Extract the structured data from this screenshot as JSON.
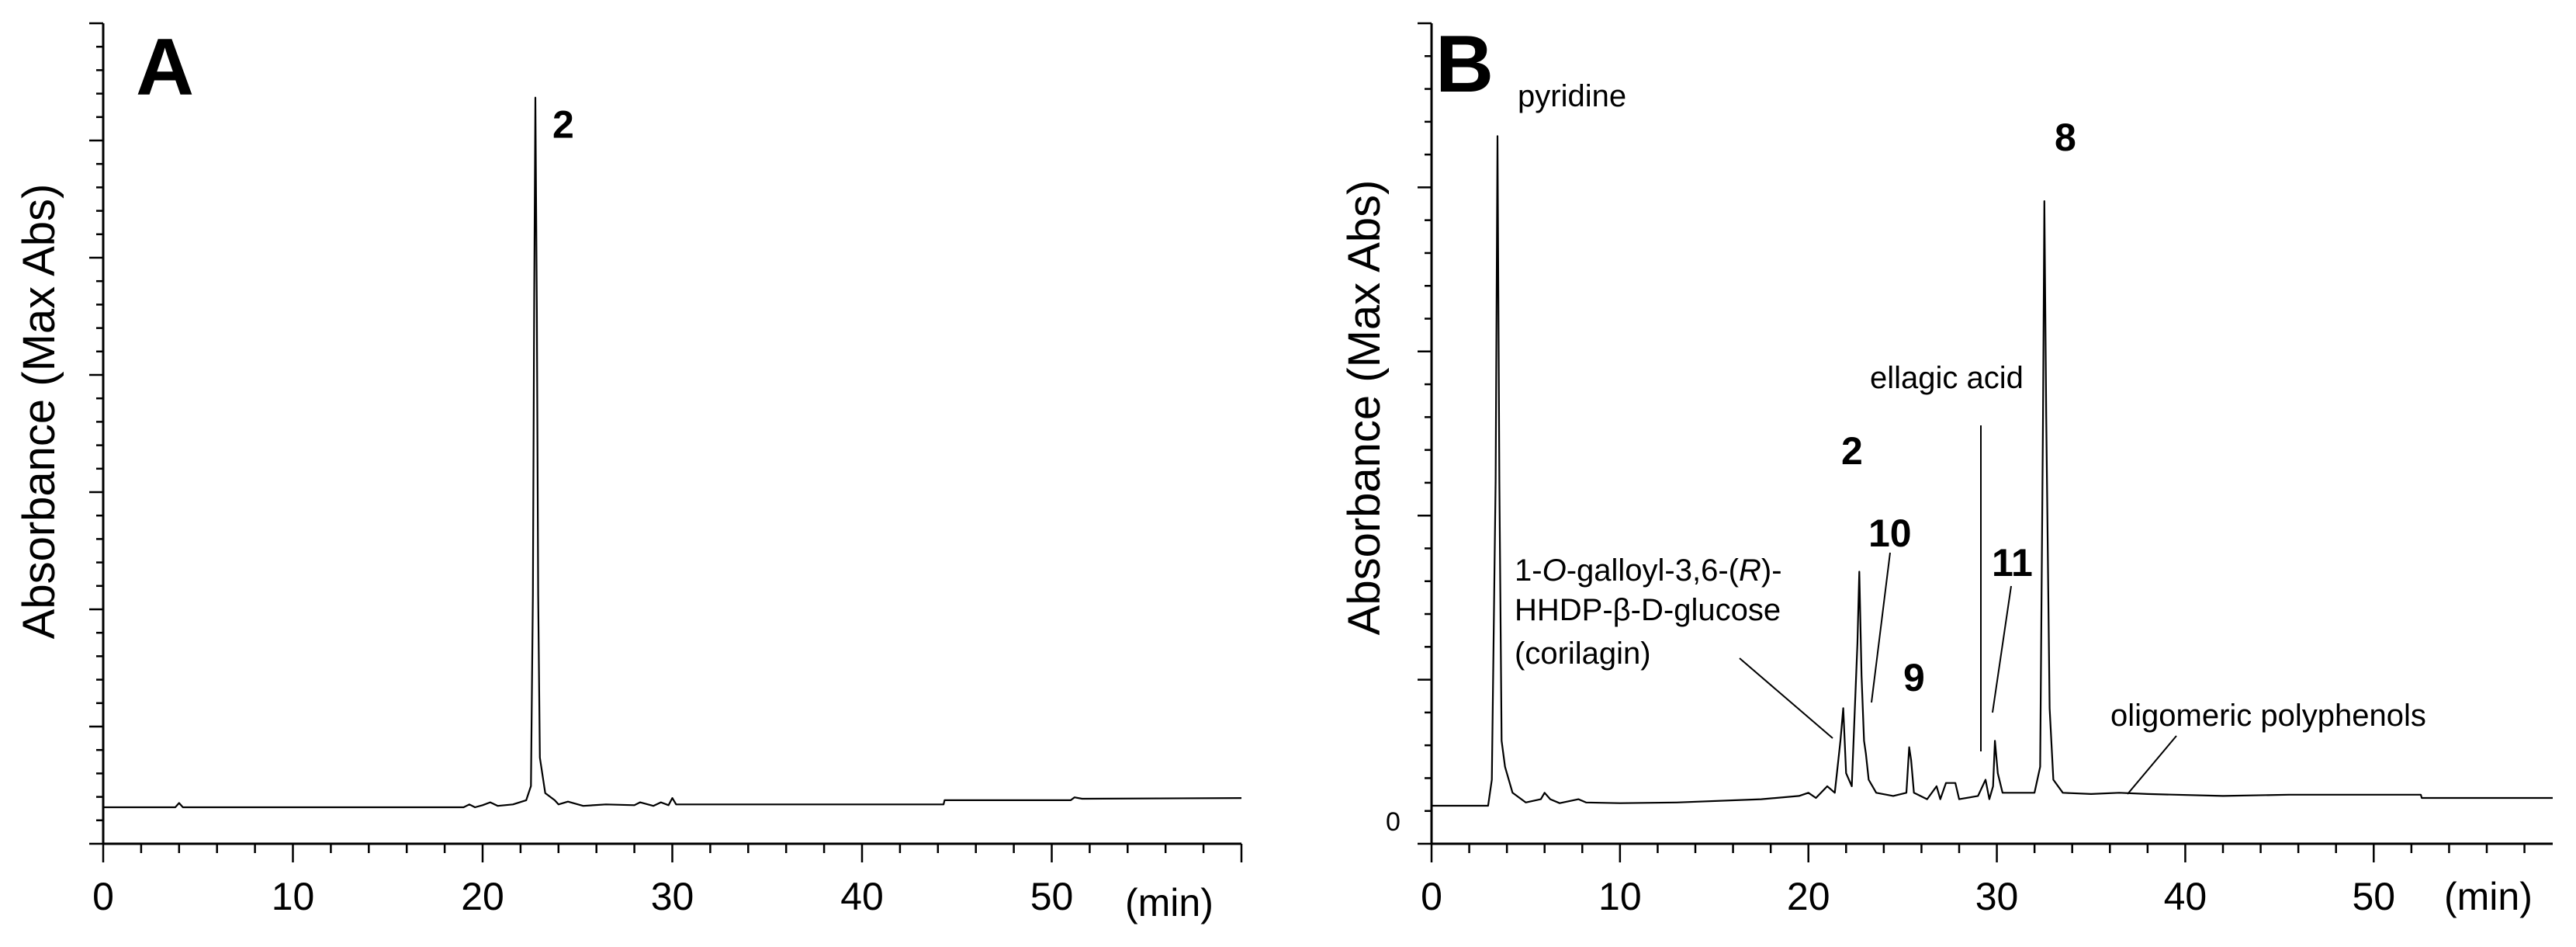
{
  "chart_data": [
    {
      "type": "line",
      "panel": "A",
      "ylabel": "Absorbance (Max Abs)",
      "xlabel_unit": "(min)",
      "xlim": [
        0,
        60
      ],
      "xticks": [
        "0",
        "10",
        "20",
        "30",
        "40",
        "50"
      ],
      "ylim": [
        0,
        1.05
      ],
      "y_tick_labels_shown": false,
      "grid": false,
      "series": [
        {
          "points": [
            [
              0,
              0.0
            ],
            [
              3.8,
              0.0
            ],
            [
              4.0,
              0.006
            ],
            [
              4.2,
              0.0
            ],
            [
              19.0,
              0.0
            ],
            [
              19.3,
              0.004
            ],
            [
              19.6,
              0.0
            ],
            [
              20.0,
              0.003
            ],
            [
              20.4,
              0.007
            ],
            [
              20.8,
              0.002
            ],
            [
              21.6,
              0.004
            ],
            [
              22.3,
              0.01
            ],
            [
              22.55,
              0.03
            ],
            [
              22.65,
              0.3
            ],
            [
              22.72,
              0.72
            ],
            [
              22.78,
              1.0
            ],
            [
              22.86,
              0.7
            ],
            [
              22.93,
              0.3
            ],
            [
              23.02,
              0.07
            ],
            [
              23.3,
              0.02
            ],
            [
              23.8,
              0.01
            ],
            [
              24.0,
              0.004
            ],
            [
              24.5,
              0.008
            ],
            [
              25.3,
              0.002
            ],
            [
              26.5,
              0.004
            ],
            [
              28.0,
              0.003
            ],
            [
              28.3,
              0.007
            ],
            [
              29.0,
              0.002
            ],
            [
              29.4,
              0.007
            ],
            [
              29.8,
              0.003
            ],
            [
              30.0,
              0.013
            ],
            [
              30.2,
              0.004
            ],
            [
              44.3,
              0.004
            ],
            [
              44.35,
              0.01
            ],
            [
              51.0,
              0.01
            ],
            [
              51.2,
              0.014
            ],
            [
              51.6,
              0.012
            ],
            [
              60.0,
              0.013
            ]
          ]
        }
      ],
      "peak_labels": [
        {
          "text": "2",
          "x": 22.78,
          "y": 1.0
        }
      ]
    },
    {
      "type": "line",
      "panel": "B",
      "ylabel": "Absorbance (Max Abs)",
      "xlabel_unit": "(min)",
      "xlim": [
        0,
        59.5
      ],
      "xticks": [
        "0",
        "10",
        "20",
        "30",
        "40",
        "50"
      ],
      "ylim": [
        0,
        1.12
      ],
      "y_origin_label": "0",
      "y_tick_labels_shown": false,
      "grid": false,
      "series": [
        {
          "points": [
            [
              0,
              0.0
            ],
            [
              3.0,
              0.0
            ],
            [
              3.2,
              0.04
            ],
            [
              3.4,
              0.5
            ],
            [
              3.5,
              1.03
            ],
            [
              3.6,
              0.5
            ],
            [
              3.72,
              0.1
            ],
            [
              3.9,
              0.06
            ],
            [
              4.3,
              0.02
            ],
            [
              5.0,
              0.005
            ],
            [
              5.8,
              0.01
            ],
            [
              6.0,
              0.02
            ],
            [
              6.3,
              0.01
            ],
            [
              6.8,
              0.004
            ],
            [
              7.8,
              0.01
            ],
            [
              8.2,
              0.005
            ],
            [
              10.0,
              0.004
            ],
            [
              13.0,
              0.005
            ],
            [
              17.5,
              0.01
            ],
            [
              19.5,
              0.015
            ],
            [
              20.0,
              0.02
            ],
            [
              20.4,
              0.012
            ],
            [
              21.0,
              0.03
            ],
            [
              21.4,
              0.02
            ],
            [
              21.7,
              0.1
            ],
            [
              21.85,
              0.15
            ],
            [
              22.0,
              0.05
            ],
            [
              22.3,
              0.03
            ],
            [
              22.6,
              0.25
            ],
            [
              22.7,
              0.36
            ],
            [
              22.82,
              0.2
            ],
            [
              22.95,
              0.1
            ],
            [
              23.05,
              0.08
            ],
            [
              23.2,
              0.04
            ],
            [
              23.6,
              0.02
            ],
            [
              24.5,
              0.015
            ],
            [
              25.2,
              0.02
            ],
            [
              25.35,
              0.09
            ],
            [
              25.45,
              0.07
            ],
            [
              25.6,
              0.02
            ],
            [
              26.3,
              0.01
            ],
            [
              26.8,
              0.03
            ],
            [
              27.0,
              0.01
            ],
            [
              27.3,
              0.035
            ],
            [
              27.8,
              0.035
            ],
            [
              28.0,
              0.01
            ],
            [
              29.0,
              0.015
            ],
            [
              29.4,
              0.04
            ],
            [
              29.6,
              0.01
            ],
            [
              29.8,
              0.03
            ],
            [
              29.9,
              0.1
            ],
            [
              30.05,
              0.05
            ],
            [
              30.3,
              0.02
            ],
            [
              32.0,
              0.02
            ],
            [
              32.3,
              0.06
            ],
            [
              32.45,
              0.6
            ],
            [
              32.52,
              0.93
            ],
            [
              32.62,
              0.6
            ],
            [
              32.8,
              0.15
            ],
            [
              33.0,
              0.04
            ],
            [
              33.5,
              0.02
            ],
            [
              35.0,
              0.018
            ],
            [
              36.5,
              0.02
            ],
            [
              38.0,
              0.018
            ],
            [
              42.0,
              0.015
            ],
            [
              45.5,
              0.017
            ],
            [
              52.5,
              0.017
            ],
            [
              52.55,
              0.012
            ],
            [
              59.5,
              0.012
            ]
          ]
        }
      ],
      "peak_labels": [
        {
          "text": "pyridine",
          "x": 3.5,
          "y": 1.03
        },
        {
          "text": "8",
          "x": 32.52,
          "y": 0.93
        },
        {
          "text": "2",
          "x": 22.7,
          "y": 0.36
        },
        {
          "text": "10",
          "x": 23.0,
          "y": 0.1
        },
        {
          "text": "9",
          "x": 25.35,
          "y": 0.09
        },
        {
          "text": "11",
          "x": 29.9,
          "y": 0.1
        }
      ],
      "annotations": [
        {
          "text": "ellagic acid",
          "x": 29.3
        },
        {
          "lines": [
            "1-O-galloyl-3,6-(R)-",
            "HHDP-β-D-glucose",
            "(corilagin)"
          ],
          "x": 21.8
        },
        {
          "text": "oligomeric polyphenols",
          "x": 36.5
        }
      ]
    }
  ]
}
